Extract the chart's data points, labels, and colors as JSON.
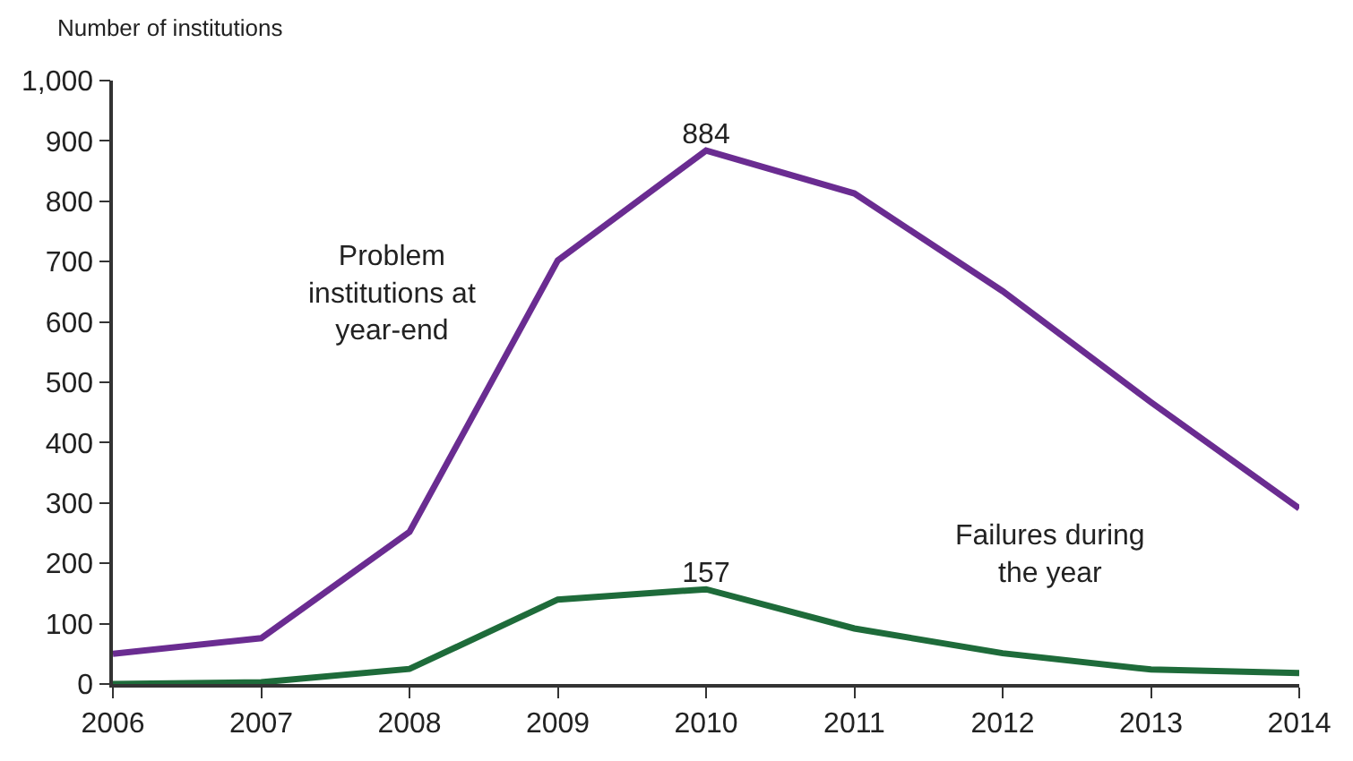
{
  "chart_data": {
    "type": "line",
    "ylabel": "Number of institutions",
    "x": [
      2006,
      2007,
      2008,
      2009,
      2010,
      2011,
      2012,
      2013,
      2014
    ],
    "series": [
      {
        "name": "Problem institutions at year-end",
        "color": "#6a2c91",
        "values": [
          50,
          76,
          252,
          702,
          884,
          813,
          651,
          467,
          291
        ],
        "value_labels": [
          null,
          null,
          null,
          null,
          "884",
          null,
          null,
          null,
          null
        ]
      },
      {
        "name": "Failures during the year",
        "color": "#1e6b3a",
        "values": [
          0,
          3,
          25,
          140,
          157,
          92,
          51,
          24,
          18
        ],
        "value_labels": [
          null,
          null,
          null,
          null,
          "157",
          null,
          null,
          null,
          null
        ]
      }
    ],
    "xlim": [
      2006,
      2014
    ],
    "xticks": [
      2006,
      2007,
      2008,
      2009,
      2010,
      2011,
      2012,
      2013,
      2014
    ],
    "ylim": [
      0,
      1000
    ],
    "yticks": [
      0,
      100,
      200,
      300,
      400,
      500,
      600,
      700,
      800,
      900,
      {
        "value": 1000,
        "label": "1,000"
      }
    ],
    "legend": false,
    "marker": "none",
    "line_style": "solid"
  }
}
